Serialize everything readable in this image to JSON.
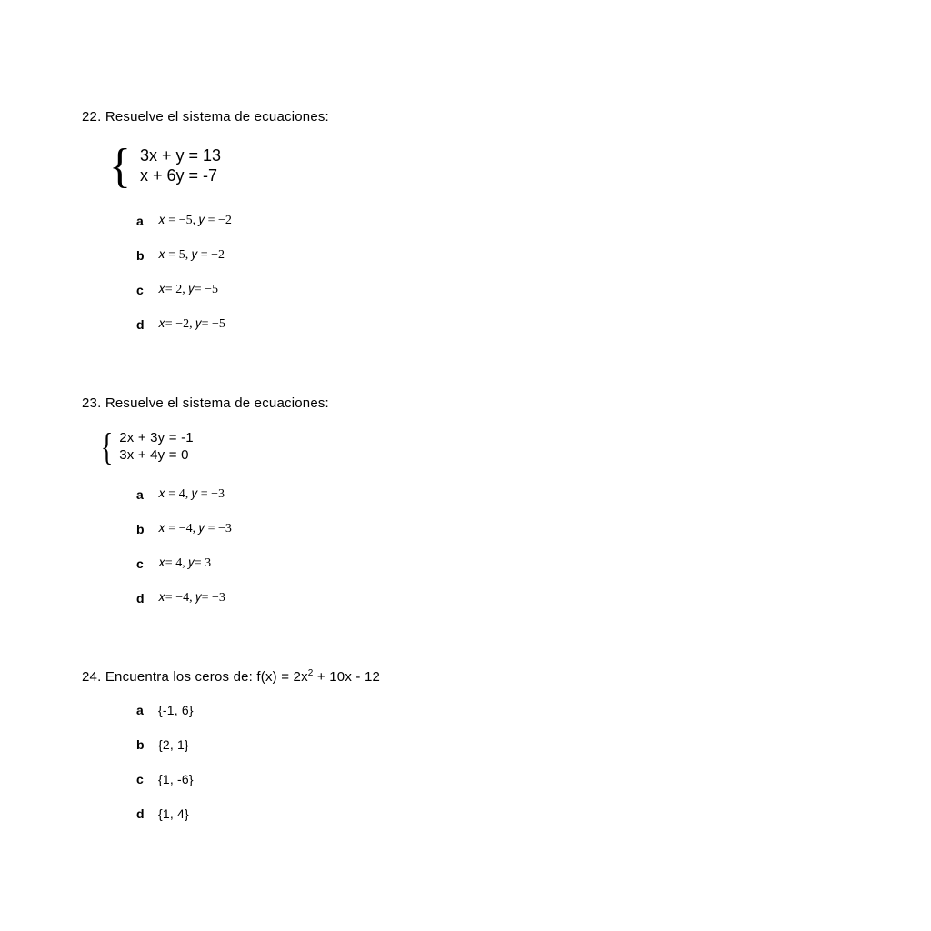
{
  "questions": [
    {
      "number": "22.",
      "prompt": "Resuelve el sistema de ecuaciones:",
      "equations": [
        "3x + y = 13",
        "x + 6y  =  -7"
      ],
      "brace_size": "large",
      "options_style": "math",
      "options": [
        {
          "letter": "a",
          "text": "x = −5, y = −2"
        },
        {
          "letter": "b",
          "text": "x = 5, y = −2"
        },
        {
          "letter": "c",
          "text": "x= 2, y= −5"
        },
        {
          "letter": "d",
          "text": "x= −2, y= −5"
        }
      ]
    },
    {
      "number": "23.",
      "prompt": "Resuelve el sistema de ecuaciones:",
      "equations": [
        "2x + 3y  = -1",
        "3x + 4y  = 0"
      ],
      "brace_size": "small",
      "options_style": "math",
      "options": [
        {
          "letter": "a",
          "text": "x = 4, y = −3"
        },
        {
          "letter": "b",
          "text": "x = −4, y = −3"
        },
        {
          "letter": "c",
          "text": "x= 4, y= 3"
        },
        {
          "letter": "d",
          "text": "x= −4, y= −3"
        }
      ]
    },
    {
      "number": "24.",
      "prompt_html": "Encuentra los ceros de: f(x) = 2x<span class=\"super\">2</span> + 10x - 12",
      "options_style": "plain",
      "options": [
        {
          "letter": "a",
          "text": "{-1, 6}"
        },
        {
          "letter": "b",
          "text": "{2, 1}"
        },
        {
          "letter": "c",
          "text": "{1, -6}"
        },
        {
          "letter": "d",
          "text": "{1, 4}"
        }
      ]
    }
  ],
  "colors": {
    "background": "#ffffff",
    "text": "#000000"
  }
}
